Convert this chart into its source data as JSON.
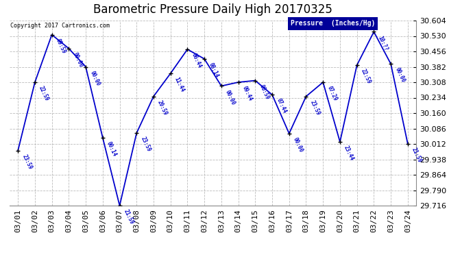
{
  "title": "Barometric Pressure Daily High 20170325",
  "copyright": "Copyright 2017 Cartronics.com",
  "legend_label": "Pressure  (Inches/Hg)",
  "background_color": "#ffffff",
  "plot_bg_color": "#ffffff",
  "line_color": "#0000cc",
  "marker_color": "#000000",
  "grid_color": "#bbbbbb",
  "text_color": "#0000cc",
  "dates": [
    "03/01",
    "03/02",
    "03/03",
    "03/04",
    "03/05",
    "03/06",
    "03/07",
    "03/08",
    "03/09",
    "03/10",
    "03/11",
    "03/12",
    "03/13",
    "03/14",
    "03/15",
    "03/16",
    "03/17",
    "03/18",
    "03/19",
    "03/20",
    "03/21",
    "03/22",
    "03/23",
    "03/24"
  ],
  "values": [
    29.98,
    30.308,
    30.536,
    30.47,
    30.382,
    30.042,
    29.716,
    30.064,
    30.24,
    30.35,
    30.466,
    30.42,
    30.29,
    30.308,
    30.316,
    30.248,
    30.062,
    30.24,
    30.308,
    30.022,
    30.39,
    30.55,
    30.396,
    30.012
  ],
  "time_labels": [
    "23:59",
    "22:59",
    "09:59",
    "00:00",
    "00:00",
    "00:14",
    "21:59",
    "23:59",
    "20:59",
    "11:44",
    "06:44",
    "08:14",
    "00:00",
    "09:44",
    "06:59",
    "07:44",
    "00:00",
    "23:59",
    "07:29",
    "23:44",
    "22:59",
    "10:??",
    "00:00",
    "21:59"
  ],
  "ylim_min": 29.716,
  "ylim_max": 30.604,
  "ytick_step": 0.074,
  "title_fontsize": 12,
  "tick_label_fontsize": 8,
  "legend_fontsize": 7,
  "data_label_fontsize": 5.5
}
